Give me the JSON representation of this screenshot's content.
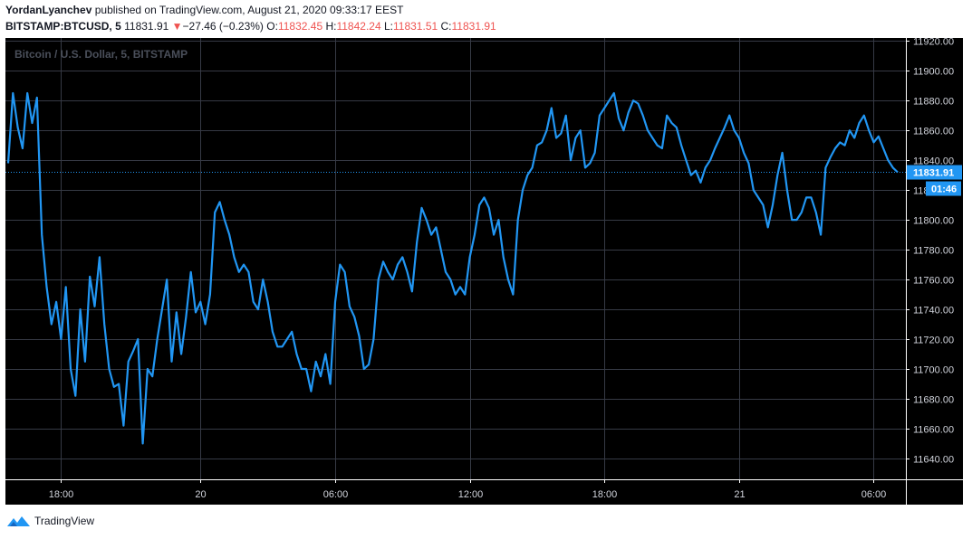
{
  "header": {
    "author": "YordanLyanchev",
    "published_text": "published on TradingView.com, August 21, 2020 09:33:17 EEST",
    "symbol": "BITSTAMP:BTCUSD, 5",
    "last": "11831.91",
    "change_arrow": "▼",
    "change": "−27.46 (−0.23%)",
    "o_label": "O:",
    "o_value": "11832.45",
    "h_label": "H:",
    "h_value": "11842.24",
    "l_label": "L:",
    "l_value": "11831.51",
    "c_label": "C:",
    "c_value": "11831.91"
  },
  "chart_data": {
    "type": "line",
    "watermark": "Bitcoin / U.S. Dollar, 5, BITSTAMP",
    "ylim": [
      11626,
      11922
    ],
    "y_ticks": [
      11920,
      11900,
      11880,
      11860,
      11840,
      11820,
      11800,
      11780,
      11760,
      11740,
      11720,
      11700,
      11680,
      11660,
      11640
    ],
    "y_tick_labels": [
      "11920.00",
      "11900.00",
      "11880.00",
      "11860.00",
      "11840.00",
      "11820.00",
      "11800.00",
      "11780.00",
      "11760.00",
      "11740.00",
      "11720.00",
      "11700.00",
      "11680.00",
      "11660.00",
      "11640.00"
    ],
    "x_ticks": [
      "18:00",
      "20",
      "06:00",
      "12:00",
      "18:00",
      "21",
      "06:00"
    ],
    "x_tick_index": [
      11,
      40,
      68,
      96,
      124,
      152,
      180
    ],
    "last_price_label": "11831.91",
    "countdown_label": "01:46",
    "line_color": "#2196f3",
    "series": [
      {
        "values": [
          11838,
          11885,
          11862,
          11848,
          11885,
          11865,
          11882,
          11790,
          11755,
          11730,
          11745,
          11720,
          11755,
          11700,
          11682,
          11740,
          11705,
          11762,
          11742,
          11775,
          11730,
          11700,
          11688,
          11690,
          11662,
          11705,
          11712,
          11720,
          11650,
          11700,
          11695,
          11720,
          11740,
          11760,
          11705,
          11738,
          11710,
          11735,
          11765,
          11738,
          11745,
          11730,
          11750,
          11805,
          11812,
          11800,
          11790,
          11775,
          11765,
          11770,
          11765,
          11745,
          11740,
          11760,
          11745,
          11725,
          11715,
          11715,
          11720,
          11725,
          11710,
          11700,
          11700,
          11685,
          11705,
          11695,
          11710,
          11690,
          11745,
          11770,
          11765,
          11742,
          11735,
          11722,
          11700,
          11703,
          11720,
          11760,
          11772,
          11765,
          11760,
          11770,
          11775,
          11765,
          11752,
          11785,
          11808,
          11800,
          11790,
          11795,
          11780,
          11765,
          11760,
          11750,
          11755,
          11750,
          11775,
          11790,
          11810,
          11815,
          11808,
          11790,
          11800,
          11775,
          11760,
          11750,
          11800,
          11820,
          11830,
          11835,
          11850,
          11852,
          11860,
          11875,
          11855,
          11858,
          11870,
          11840,
          11855,
          11860,
          11835,
          11838,
          11845,
          11870,
          11875,
          11880,
          11885,
          11868,
          11860,
          11872,
          11880,
          11878,
          11870,
          11860,
          11855,
          11850,
          11848,
          11870,
          11865,
          11862,
          11850,
          11840,
          11830,
          11833,
          11825,
          11835,
          11840,
          11848,
          11855,
          11862,
          11870,
          11860,
          11855,
          11845,
          11838,
          11820,
          11815,
          11810,
          11795,
          11810,
          11830,
          11845,
          11820,
          11800,
          11800,
          11805,
          11815,
          11815,
          11805,
          11790,
          11835,
          11842,
          11848,
          11852,
          11850,
          11860,
          11855,
          11865,
          11870,
          11860,
          11852,
          11856,
          11848,
          11840,
          11835,
          11831.91
        ]
      }
    ]
  },
  "footer": {
    "brand": "TradingView"
  }
}
